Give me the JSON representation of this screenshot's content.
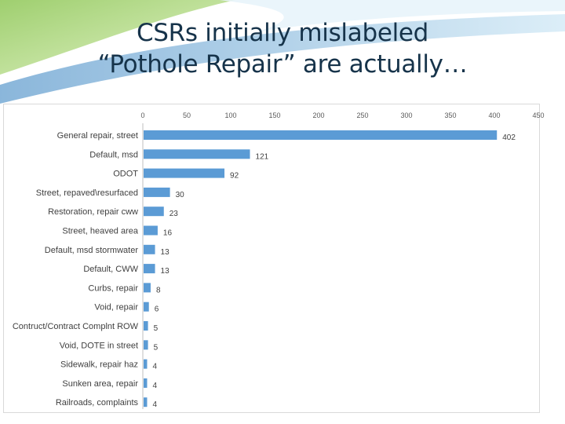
{
  "slide": {
    "title_line1": "CSRs initially mislabeled",
    "title_line2": "“Pothole Repair” are actually…"
  },
  "colors": {
    "bar": "#5b9bd5",
    "title": "#16334a",
    "accent_green": "#8cc63f",
    "accent_blue": "#1f78b4"
  },
  "chart_data": {
    "type": "bar",
    "orientation": "horizontal",
    "categories": [
      "General repair, street",
      "Default, msd",
      "ODOT",
      "Street, repaved\\resurfaced",
      "Restoration, repair cww",
      "Street, heaved area",
      "Default, msd stormwater",
      "Default, CWW",
      "Curbs, repair",
      "Void, repair",
      "Contruct/Contract Complnt ROW",
      "Void, DOTE in street",
      "Sidewalk, repair haz",
      "Sunken area, repair",
      "Railroads, complaints"
    ],
    "values": [
      402,
      121,
      92,
      30,
      23,
      16,
      13,
      13,
      8,
      6,
      5,
      5,
      4,
      4,
      4
    ],
    "value_labels": [
      "402",
      "121",
      "92",
      "30",
      "23",
      "16",
      "13",
      "13",
      "8",
      "6",
      "5",
      "5",
      "4",
      "4",
      "4"
    ],
    "xlim": [
      0,
      450
    ],
    "xticks": [
      "0",
      "50",
      "100",
      "150",
      "200",
      "250",
      "300",
      "350",
      "400",
      "450"
    ],
    "axis_position": "top",
    "grid": false,
    "legend": "none"
  }
}
